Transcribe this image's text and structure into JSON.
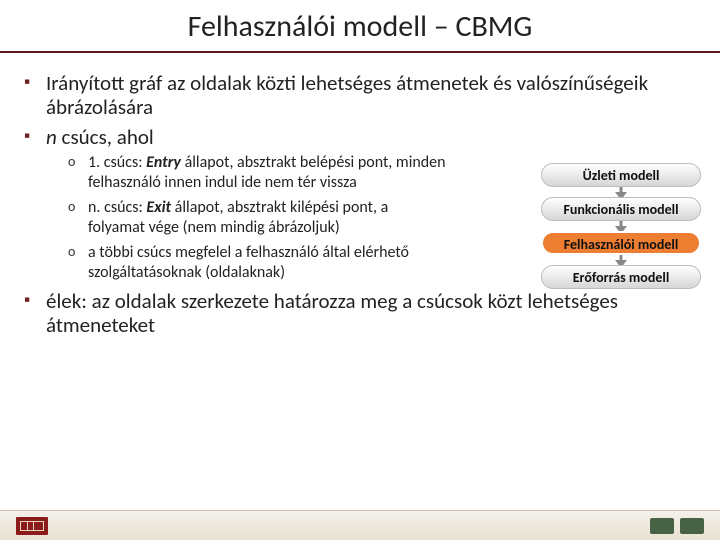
{
  "title": "Felhasználói modell – CBMG",
  "bullets": {
    "b1": "Irányított gráf az oldalak közti lehetséges átmenetek és valószínűségeik ábrázolására",
    "b2_prefix": " csúcs, ahol",
    "b2_n": "n",
    "b3": "élek: az oldalak szerkezete határozza meg a csúcsok közt lehetséges átmeneteket"
  },
  "sub": {
    "s1_a": "1. csúcs: ",
    "s1_b": "Entry",
    "s1_c": " állapot, absztrakt belépési pont, minden felhasználó innen indul ide nem tér vissza",
    "s2_a": "n. csúcs: ",
    "s2_b": "Exit",
    "s2_c": " állapot, absztrakt kilépési pont, a folyamat vége (nem mindig ábrázoljuk)",
    "s3": "a többi csúcs megfelel a felhasználó által elérhető szolgáltatásoknak (oldalaknak)"
  },
  "models": {
    "m1": "Üzleti modell",
    "m2": "Funkcionális modell",
    "m3": "Felhasználói modell",
    "m4": "Erőforrás modell"
  },
  "colors": {
    "accent": "#5a1818",
    "highlight": "#ed7d31",
    "footer_bg": "#e8e1d2",
    "footer_logo": "#8b1a1a"
  }
}
